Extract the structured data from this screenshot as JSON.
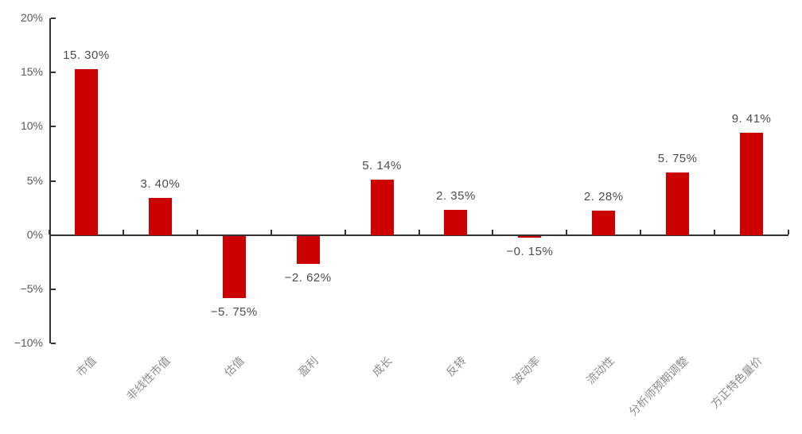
{
  "chart_data": {
    "type": "bar",
    "title": "",
    "xlabel": "",
    "ylabel": "",
    "categories": [
      "市值",
      "非线性市值",
      "估值",
      "盈利",
      "成长",
      "反转",
      "波动率",
      "流动性",
      "分析师预期调整",
      "方正特色量价"
    ],
    "values": [
      15.3,
      3.4,
      -5.75,
      -2.62,
      5.14,
      2.35,
      -0.15,
      2.28,
      5.75,
      9.41
    ],
    "value_labels": [
      "15. 30%",
      "3. 40%",
      "−5. 75%",
      "−2. 62%",
      "5. 14%",
      "2. 35%",
      "−0. 15%",
      "2. 28%",
      "5. 75%",
      "9. 41%"
    ],
    "ylim": [
      -10,
      20
    ],
    "yticks": [
      20,
      15,
      10,
      5,
      0,
      -5,
      -10
    ],
    "ytick_labels": [
      "20%",
      "15%",
      "10%",
      "5%",
      "0%",
      "−5%",
      "−10%"
    ],
    "grid": false,
    "legend": null,
    "colors": {
      "bar": "#cc0000",
      "axis": "#333333",
      "value_label": "#4d4d4d",
      "ytick_label": "#595959",
      "xcat_label": "#8c8c8c"
    }
  }
}
